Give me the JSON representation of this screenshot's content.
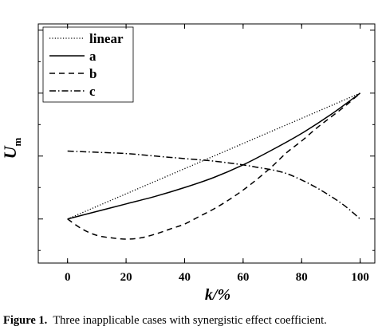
{
  "chart_data": {
    "type": "line",
    "title": "",
    "xlabel": "k/%",
    "ylabel": "U_m",
    "ylabel_main": "U",
    "ylabel_sub": "m",
    "xlim": [
      -10,
      105
    ],
    "ylim": [
      -0.35,
      1.55
    ],
    "xticks": [
      0,
      20,
      40,
      60,
      80,
      100
    ],
    "xtick_labels": [
      "0",
      "20",
      "40",
      "60",
      "80",
      "100"
    ],
    "y_tick_labels_shown": false,
    "grid": false,
    "legend_position": "top-left",
    "series": [
      {
        "name": "linear",
        "style": "dotted",
        "color": "#000000",
        "x": [
          0,
          100
        ],
        "y": [
          0.0,
          1.0
        ]
      },
      {
        "name": "a",
        "style": "solid",
        "color": "#000000",
        "x": [
          0,
          10,
          20,
          30,
          40,
          50,
          60,
          70,
          80,
          90,
          100
        ],
        "y": [
          0.0,
          0.06,
          0.12,
          0.18,
          0.25,
          0.33,
          0.43,
          0.55,
          0.68,
          0.83,
          1.0
        ]
      },
      {
        "name": "b",
        "style": "dashed",
        "color": "#000000",
        "x": [
          0,
          5,
          10,
          15,
          20,
          25,
          30,
          35,
          40,
          45,
          50,
          55,
          60,
          65,
          70,
          75,
          80,
          85,
          90,
          95,
          100
        ],
        "y": [
          0.0,
          -0.08,
          -0.13,
          -0.15,
          -0.16,
          -0.15,
          -0.12,
          -0.08,
          -0.04,
          0.02,
          0.08,
          0.15,
          0.23,
          0.32,
          0.42,
          0.53,
          0.62,
          0.72,
          0.81,
          0.9,
          1.0
        ]
      },
      {
        "name": "c",
        "style": "dashdot",
        "color": "#000000",
        "x": [
          0,
          10,
          20,
          30,
          40,
          50,
          60,
          65,
          70,
          75,
          80,
          85,
          90,
          95,
          100
        ],
        "y": [
          0.54,
          0.53,
          0.52,
          0.5,
          0.48,
          0.46,
          0.43,
          0.41,
          0.39,
          0.36,
          0.31,
          0.25,
          0.18,
          0.1,
          0.0
        ]
      }
    ]
  },
  "caption": {
    "label": "Figure 1.",
    "text": "Three inapplicable cases with synergistic effect coefficient."
  }
}
